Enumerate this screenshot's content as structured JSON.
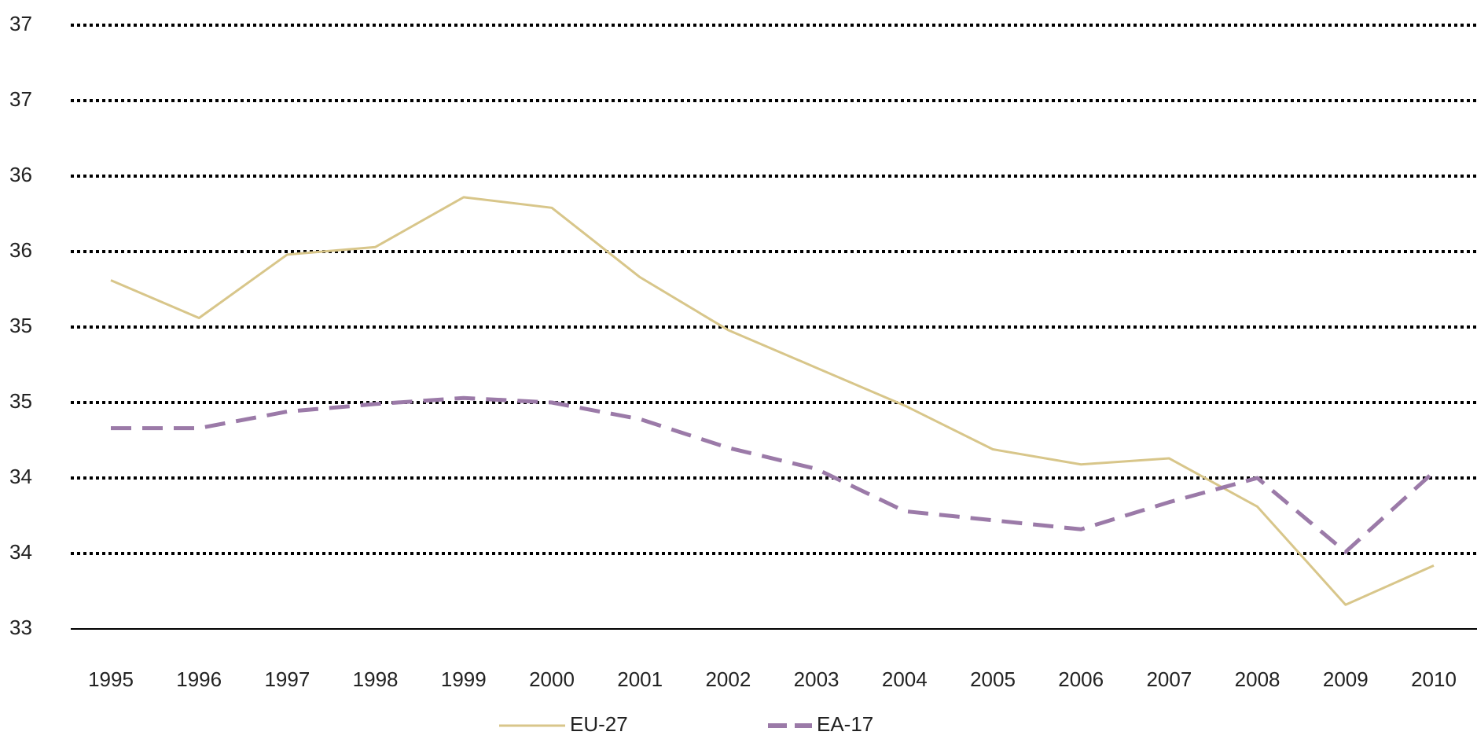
{
  "chart_data": {
    "type": "line",
    "categories": [
      "1995",
      "1996",
      "1997",
      "1998",
      "1999",
      "2000",
      "2001",
      "2002",
      "2003",
      "2004",
      "2005",
      "2006",
      "2007",
      "2008",
      "2009",
      "2010"
    ],
    "series": [
      {
        "name": "EU-27",
        "color": "#d8c68a",
        "dash": "solid",
        "values": [
          35.31,
          35.06,
          35.48,
          35.53,
          35.86,
          35.79,
          35.33,
          34.98,
          34.73,
          34.48,
          34.19,
          34.09,
          34.13,
          33.81,
          33.16,
          33.42
        ]
      },
      {
        "name": "EA-17",
        "color": "#9b7aa8",
        "dash": "dashed",
        "values": [
          34.33,
          34.33,
          34.44,
          34.49,
          34.53,
          34.5,
          34.39,
          34.2,
          34.06,
          33.78,
          33.72,
          33.66,
          33.84,
          34.0,
          33.51,
          34.04
        ]
      }
    ],
    "ylim": [
      33,
      37
    ],
    "yticks": [
      33,
      {
        "value": 33.5,
        "label": "34"
      },
      34,
      {
        "value": 34.5,
        "label": "35"
      },
      35,
      {
        "value": 35.5,
        "label": "36"
      },
      36,
      {
        "value": 36.5,
        "label": "37"
      },
      37
    ],
    "grid": true,
    "legend": "bottom"
  }
}
